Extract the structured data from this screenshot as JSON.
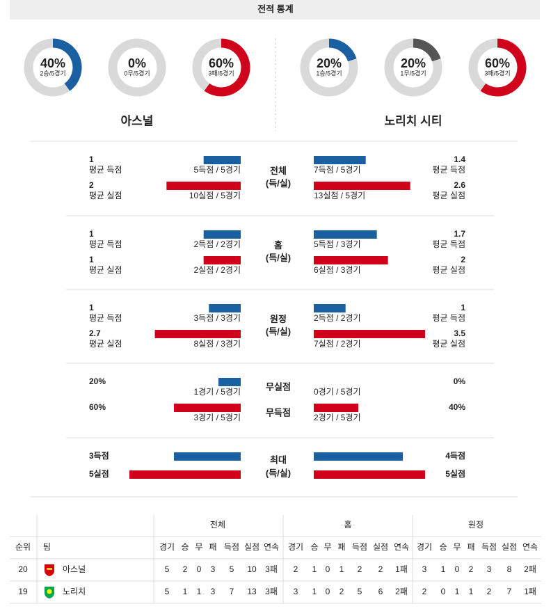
{
  "header": {
    "title": "전적 통계"
  },
  "bar_colors": [
    "#1a5fa0",
    "#d0021b"
  ],
  "teams": [
    {
      "name": "아스널",
      "donuts": [
        {
          "value": 40,
          "value_label": "40%",
          "record": "2승/5경기",
          "color": "#1a5fa0"
        },
        {
          "value": 0,
          "value_label": "0%",
          "record": "0무/5경기",
          "color": "#555555"
        },
        {
          "value": 60,
          "value_label": "60%",
          "record": "3패/5경기",
          "color": "#d0021b"
        }
      ]
    },
    {
      "name": "노리치 시티",
      "donuts": [
        {
          "value": 20,
          "value_label": "20%",
          "record": "1승/5경기",
          "color": "#1a5fa0"
        },
        {
          "value": 20,
          "value_label": "20%",
          "record": "1무/5경기",
          "color": "#555555"
        },
        {
          "value": 60,
          "value_label": "60%",
          "record": "3패/5경기",
          "color": "#d0021b"
        }
      ]
    }
  ],
  "sections": [
    {
      "type": "average",
      "labels": [
        "전체",
        "(득/실)"
      ],
      "rows": [
        {
          "left": {
            "value": 1,
            "label": "평균 득점",
            "detail": "5득점 / 5경기"
          },
          "right": {
            "value": 1.4,
            "label": "평균 득점",
            "detail": "7득점 / 5경기"
          }
        },
        {
          "left": {
            "value": 2,
            "label": "평균 실점",
            "detail": "10실점 / 5경기"
          },
          "right": {
            "value": 2.6,
            "label": "평균 실점",
            "detail": "13실점 / 5경기"
          }
        }
      ]
    },
    {
      "type": "average",
      "labels": [
        "홈",
        "(득/실)"
      ],
      "rows": [
        {
          "left": {
            "value": 1,
            "label": "평균 득점",
            "detail": "2득점 / 2경기"
          },
          "right": {
            "value": 1.7,
            "label": "평균 득점",
            "detail": "5득점 / 3경기"
          }
        },
        {
          "left": {
            "value": 1,
            "label": "평균 실점",
            "detail": "2실점 / 2경기"
          },
          "right": {
            "value": 2,
            "label": "평균 실점",
            "detail": "6실점 / 3경기"
          }
        }
      ]
    },
    {
      "type": "average",
      "labels": [
        "원정",
        "(득/실)"
      ],
      "rows": [
        {
          "left": {
            "value": 1,
            "label": "평균 득점",
            "detail": "3득점 / 3경기"
          },
          "right": {
            "value": 1,
            "label": "평균 득점",
            "detail": "2득점 / 2경기"
          }
        },
        {
          "left": {
            "value": 2.7,
            "label": "평균 실점",
            "detail": "8실점 / 3경기"
          },
          "right": {
            "value": 3.5,
            "label": "평균 실점",
            "detail": "7실점 / 2경기"
          }
        }
      ]
    },
    {
      "type": "percent",
      "labels": [
        "무실점",
        "무득점"
      ],
      "rows": [
        {
          "left": {
            "value": 20,
            "value_label": "20%",
            "detail": "1경기 / 5경기"
          },
          "right": {
            "value": 0,
            "value_label": "0%",
            "detail": "0경기 / 5경기"
          }
        },
        {
          "left": {
            "value": 60,
            "value_label": "60%",
            "detail": "3경기 / 5경기"
          },
          "right": {
            "value": 40,
            "value_label": "40%",
            "detail": "2경기 / 5경기"
          }
        }
      ]
    },
    {
      "type": "max",
      "labels": [
        "최대",
        "(득/실)"
      ],
      "rows": [
        {
          "left": {
            "value": 3,
            "value_label": "3득점"
          },
          "right": {
            "value": 4,
            "value_label": "4득점"
          }
        },
        {
          "left": {
            "value": 5,
            "value_label": "5실점"
          },
          "right": {
            "value": 5,
            "value_label": "5실점"
          }
        }
      ]
    }
  ],
  "table": {
    "columns": [
      "순위",
      "팀"
    ],
    "groups": [
      "전체",
      "홈",
      "원정"
    ],
    "stat_columns": [
      "경기",
      "승",
      "무",
      "패",
      "득점",
      "실점",
      "연속"
    ],
    "rows": [
      [
        20,
        "아스널",
        5,
        2,
        0,
        3,
        5,
        10,
        "3패",
        2,
        1,
        0,
        1,
        2,
        2,
        "1패",
        3,
        1,
        0,
        2,
        3,
        8,
        "2패"
      ],
      [
        19,
        "노리치",
        5,
        1,
        1,
        3,
        7,
        13,
        "3패",
        3,
        1,
        0,
        2,
        5,
        6,
        "2패",
        2,
        0,
        1,
        1,
        2,
        7,
        "1패"
      ]
    ]
  }
}
